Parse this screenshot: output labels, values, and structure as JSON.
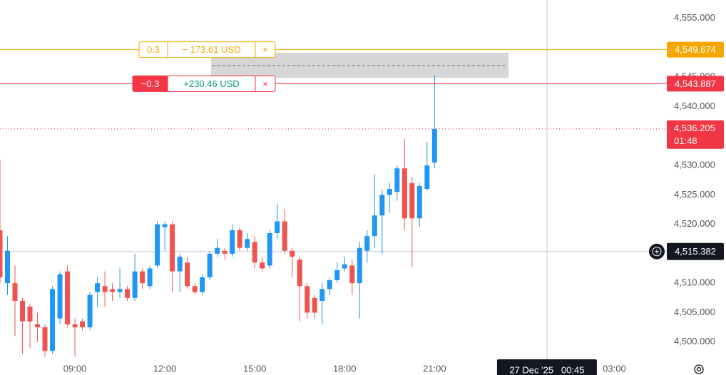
{
  "chart_data": {
    "type": "candlestick",
    "x": [
      6.5,
      6.75,
      7,
      7.25,
      7.5,
      7.75,
      8,
      8.25,
      8.5,
      8.75,
      9,
      9.25,
      9.5,
      9.75,
      10,
      10.25,
      10.5,
      10.75,
      11,
      11.25,
      11.5,
      11.75,
      12,
      12.25,
      12.5,
      12.75,
      13,
      13.25,
      13.5,
      13.75,
      14,
      14.25,
      14.5,
      14.75,
      15,
      15.25,
      15.5,
      15.75,
      16,
      16.25,
      16.5,
      16.75,
      17,
      17.25,
      17.5,
      17.75,
      18,
      18.25,
      18.5,
      18.75,
      19,
      19.25,
      19.5,
      19.75,
      20,
      20.25,
      20.5,
      20.75,
      21
    ],
    "open": [
      4519,
      4510,
      4510,
      4507,
      4506,
      4503,
      4502.5,
      4498.5,
      4504,
      4512,
      4503,
      4503.5,
      4502.5,
      4508.5,
      4509.5,
      4509,
      4508.5,
      4509,
      4507.5,
      4512,
      4509.5,
      4513,
      4519.5,
      4520,
      4512,
      4513.5,
      4509.5,
      4508.5,
      4511,
      4515,
      4515.5,
      4515,
      4519,
      4516,
      4517,
      4513.5,
      4513,
      4518.5,
      4520.5,
      4515.5,
      4514,
      4509.5,
      4507.5,
      4507,
      4509,
      4510.5,
      4512.5,
      4513,
      4510,
      4515.5,
      4518,
      4521.5,
      4525,
      4525.5,
      4529.5,
      4527,
      4521,
      4526,
      4530.5
    ],
    "high": [
      4531,
      4518,
      4513,
      4507.5,
      4506.5,
      4505,
      4503,
      4509.5,
      4512,
      4513,
      4504,
      4504,
      4508.5,
      4511,
      4512,
      4510,
      4512.5,
      4509.5,
      4515,
      4512.5,
      4513,
      4520.5,
      4520.5,
      4520.5,
      4515,
      4514.5,
      4510,
      4511.5,
      4515.5,
      4517.5,
      4516,
      4520,
      4519.5,
      4518.5,
      4518,
      4514.5,
      4519,
      4523.5,
      4522.5,
      4516,
      4514.5,
      4510,
      4508,
      4510,
      4511,
      4513.5,
      4514.5,
      4514,
      4517,
      4519,
      4528.5,
      4526,
      4527,
      4530,
      4534.5,
      4528,
      4527,
      4534,
      4545.3
    ],
    "low": [
      4510,
      4508,
      4501,
      4498,
      4499,
      4500,
      4497.5,
      4498,
      4503,
      4502.5,
      4497.5,
      4502,
      4502,
      4506,
      4506,
      4507,
      4507.5,
      4507,
      4507,
      4509,
      4509,
      4512.5,
      4515.5,
      4508.5,
      4508.5,
      4509,
      4508,
      4508,
      4510.5,
      4514.5,
      4514,
      4514.5,
      4515.5,
      4515.5,
      4512.5,
      4512,
      4512.5,
      4517.5,
      4515,
      4511,
      4503.5,
      4504,
      4504,
      4503,
      4508,
      4510,
      4512,
      4508,
      4504,
      4513.5,
      4516,
      4515,
      4522,
      4524,
      4519,
      4512.7,
      4519.6,
      4525.7,
      4529.5
    ],
    "close": [
      4511,
      4515.5,
      4507,
      4503.5,
      4503.5,
      4502.5,
      4498.5,
      4509,
      4511.5,
      4503,
      4502.5,
      4502.5,
      4508,
      4510,
      4508.5,
      4508.5,
      4509,
      4507.5,
      4512,
      4510,
      4512.5,
      4520,
      4520,
      4512,
      4514.5,
      4509.5,
      4508.5,
      4511,
      4515,
      4516,
      4515,
      4519,
      4516,
      4517.5,
      4513.5,
      4512.5,
      4518.5,
      4520.5,
      4515.5,
      4514.5,
      4509.5,
      4505,
      4505,
      4509,
      4510.5,
      4512.2,
      4513.2,
      4510,
      4516,
      4518,
      4521.5,
      4525,
      4526,
      4529.5,
      4521,
      4521,
      4526.5,
      4530,
      4536.205
    ],
    "up_color": "#2196f3",
    "down_color": "#ef5350",
    "xlim": [
      6.5,
      28.75
    ],
    "xticks": [
      {
        "value": 9,
        "label": "09:00"
      },
      {
        "value": 12,
        "label": "12:00"
      },
      {
        "value": 15,
        "label": "15:00"
      },
      {
        "value": 18,
        "label": "18:00"
      },
      {
        "value": 21,
        "label": "21:00"
      },
      {
        "value": 27,
        "label": "03:00"
      }
    ],
    "ylim": [
      4494.4,
      4558.1
    ],
    "yticks": [
      {
        "value": 4500,
        "label": "4,500.000"
      },
      {
        "value": 4505,
        "label": "4,505.000"
      },
      {
        "value": 4510,
        "label": "4,510.000"
      },
      {
        "value": 4515,
        "label": "4,515.000"
      },
      {
        "value": 4520,
        "label": "4,520.000"
      },
      {
        "value": 4525,
        "label": "4,525.000"
      },
      {
        "value": 4530,
        "label": "4,530.000"
      },
      {
        "value": 4535,
        "label": "4,535.000"
      },
      {
        "value": 4540,
        "label": "4,540.000"
      },
      {
        "value": 4545,
        "label": "4,545.000"
      },
      {
        "value": 4550,
        "label": "4,550.000"
      },
      {
        "value": 4555,
        "label": "4,555.000"
      }
    ],
    "orders": [
      {
        "price": {
          "value": 4549.674,
          "label": "4,549.674"
        },
        "qty": "0.3",
        "pnl": "− 173.61 USD",
        "close": "×",
        "color": "#f7a600",
        "pnl_color": "#f7a600"
      },
      {
        "price": {
          "value": 4543.887,
          "label": "4,543.887"
        },
        "qty": "−0.3",
        "pnl": "+230.46 USD",
        "close": "×",
        "color": "#f23645",
        "pnl_color": "#089981"
      }
    ],
    "last_price": {
      "value": 4536.205,
      "label": "4,536.205",
      "countdown": "01:48",
      "color": "#f23645"
    },
    "crosshair": {
      "y": {
        "value": 4515.382,
        "label": "4,515.382"
      },
      "x": {
        "value": 24.75,
        "label": "27 Dec '25   00:45"
      }
    }
  }
}
